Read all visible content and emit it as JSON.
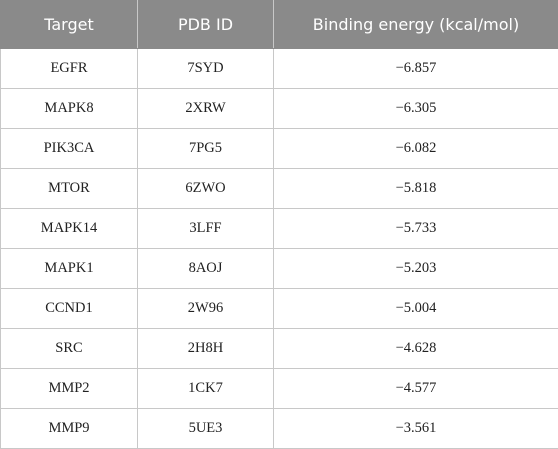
{
  "table": {
    "header": [
      "Target",
      "PDB ID",
      "Binding energy (kcal/mol)"
    ],
    "rows": [
      [
        "EGFR",
        "7SYD",
        "−6.857"
      ],
      [
        "MAPK8",
        "2XRW",
        "−6.305"
      ],
      [
        "PIK3CA",
        "7PG5",
        "−6.082"
      ],
      [
        "MTOR",
        "6ZWO",
        "−5.818"
      ],
      [
        "MAPK14",
        "3LFF",
        "−5.733"
      ],
      [
        "MAPK1",
        "8AOJ",
        "−5.203"
      ],
      [
        "CCND1",
        "2W96",
        "−5.004"
      ],
      [
        "SRC",
        "2H8H",
        "−4.628"
      ],
      [
        "MMP2",
        "1CK7",
        "−4.577"
      ],
      [
        "MMP9",
        "5UE3",
        "−3.561"
      ]
    ]
  }
}
